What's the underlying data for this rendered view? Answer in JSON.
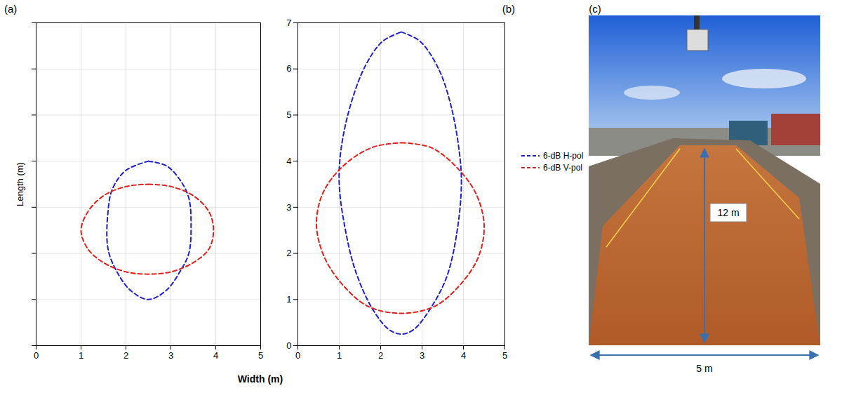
{
  "chart_data": [
    {
      "type": "line",
      "panel": "(a)",
      "y_label": "Length (m)",
      "xlim": [
        0,
        5
      ],
      "xticks": [
        0,
        1,
        2,
        3,
        4,
        5
      ],
      "ylim": [
        0,
        7
      ],
      "yticks": [
        0,
        1,
        2,
        3,
        4,
        5,
        6,
        7
      ],
      "grid": true,
      "tick_labels": "x",
      "series": [
        {
          "name": "6-dB H-pol",
          "color": "#1f1fcc",
          "line_style": "dashed",
          "x": [
            2.5,
            2.9,
            3.2,
            3.4,
            3.45,
            3.4,
            3.2,
            2.9,
            2.5,
            2.1,
            1.8,
            1.6,
            1.6,
            1.7,
            2.0,
            2.5
          ],
          "y": [
            4.0,
            3.9,
            3.6,
            3.2,
            2.6,
            2.0,
            1.6,
            1.2,
            1.0,
            1.2,
            1.6,
            2.1,
            2.9,
            3.4,
            3.8,
            4.0
          ]
        },
        {
          "name": "6-dB V-pol",
          "color": "#e0201b",
          "line_style": "dashed",
          "x": [
            2.5,
            3.0,
            3.5,
            3.85,
            3.95,
            3.85,
            3.5,
            3.0,
            2.5,
            2.0,
            1.5,
            1.15,
            1.0,
            1.15,
            1.5,
            2.0,
            2.5
          ],
          "y": [
            3.5,
            3.45,
            3.25,
            2.9,
            2.5,
            2.1,
            1.8,
            1.6,
            1.55,
            1.6,
            1.8,
            2.1,
            2.5,
            2.9,
            3.25,
            3.45,
            3.5
          ]
        }
      ]
    },
    {
      "type": "line",
      "panel": "(b)",
      "xlim": [
        0,
        5
      ],
      "xticks": [
        0,
        1,
        2,
        3,
        4,
        5
      ],
      "ylim": [
        0,
        7
      ],
      "yticks": [
        0,
        1,
        2,
        3,
        4,
        5,
        6,
        7
      ],
      "grid": true,
      "tick_labels": true,
      "legend": "right",
      "series": [
        {
          "name": "6-dB H-pol",
          "color": "#1f1fcc",
          "line_style": "dashed",
          "x": [
            2.5,
            2.95,
            3.4,
            3.7,
            3.9,
            3.95,
            3.85,
            3.6,
            3.2,
            2.8,
            2.5,
            2.2,
            1.8,
            1.4,
            1.15,
            1.0,
            1.05,
            1.3,
            1.65,
            2.05,
            2.5
          ],
          "y": [
            6.8,
            6.6,
            6.0,
            5.2,
            4.2,
            3.5,
            2.5,
            1.5,
            0.8,
            0.35,
            0.25,
            0.35,
            0.8,
            1.6,
            2.5,
            3.5,
            4.3,
            5.3,
            6.1,
            6.6,
            6.8
          ]
        },
        {
          "name": "6-dB V-pol",
          "color": "#e0201b",
          "line_style": "dashed",
          "x": [
            2.5,
            3.2,
            3.8,
            4.3,
            4.5,
            4.35,
            3.9,
            3.3,
            2.5,
            1.7,
            1.1,
            0.65,
            0.45,
            0.6,
            1.1,
            1.8,
            2.5
          ],
          "y": [
            4.4,
            4.3,
            3.9,
            3.3,
            2.6,
            1.9,
            1.3,
            0.85,
            0.7,
            0.85,
            1.3,
            1.9,
            2.6,
            3.3,
            3.9,
            4.3,
            4.4
          ]
        }
      ]
    }
  ],
  "shared": {
    "x_label": "Width (m)"
  },
  "photo": {
    "panel": "(c)",
    "length_label": "12 m",
    "width_label": "5 m"
  }
}
